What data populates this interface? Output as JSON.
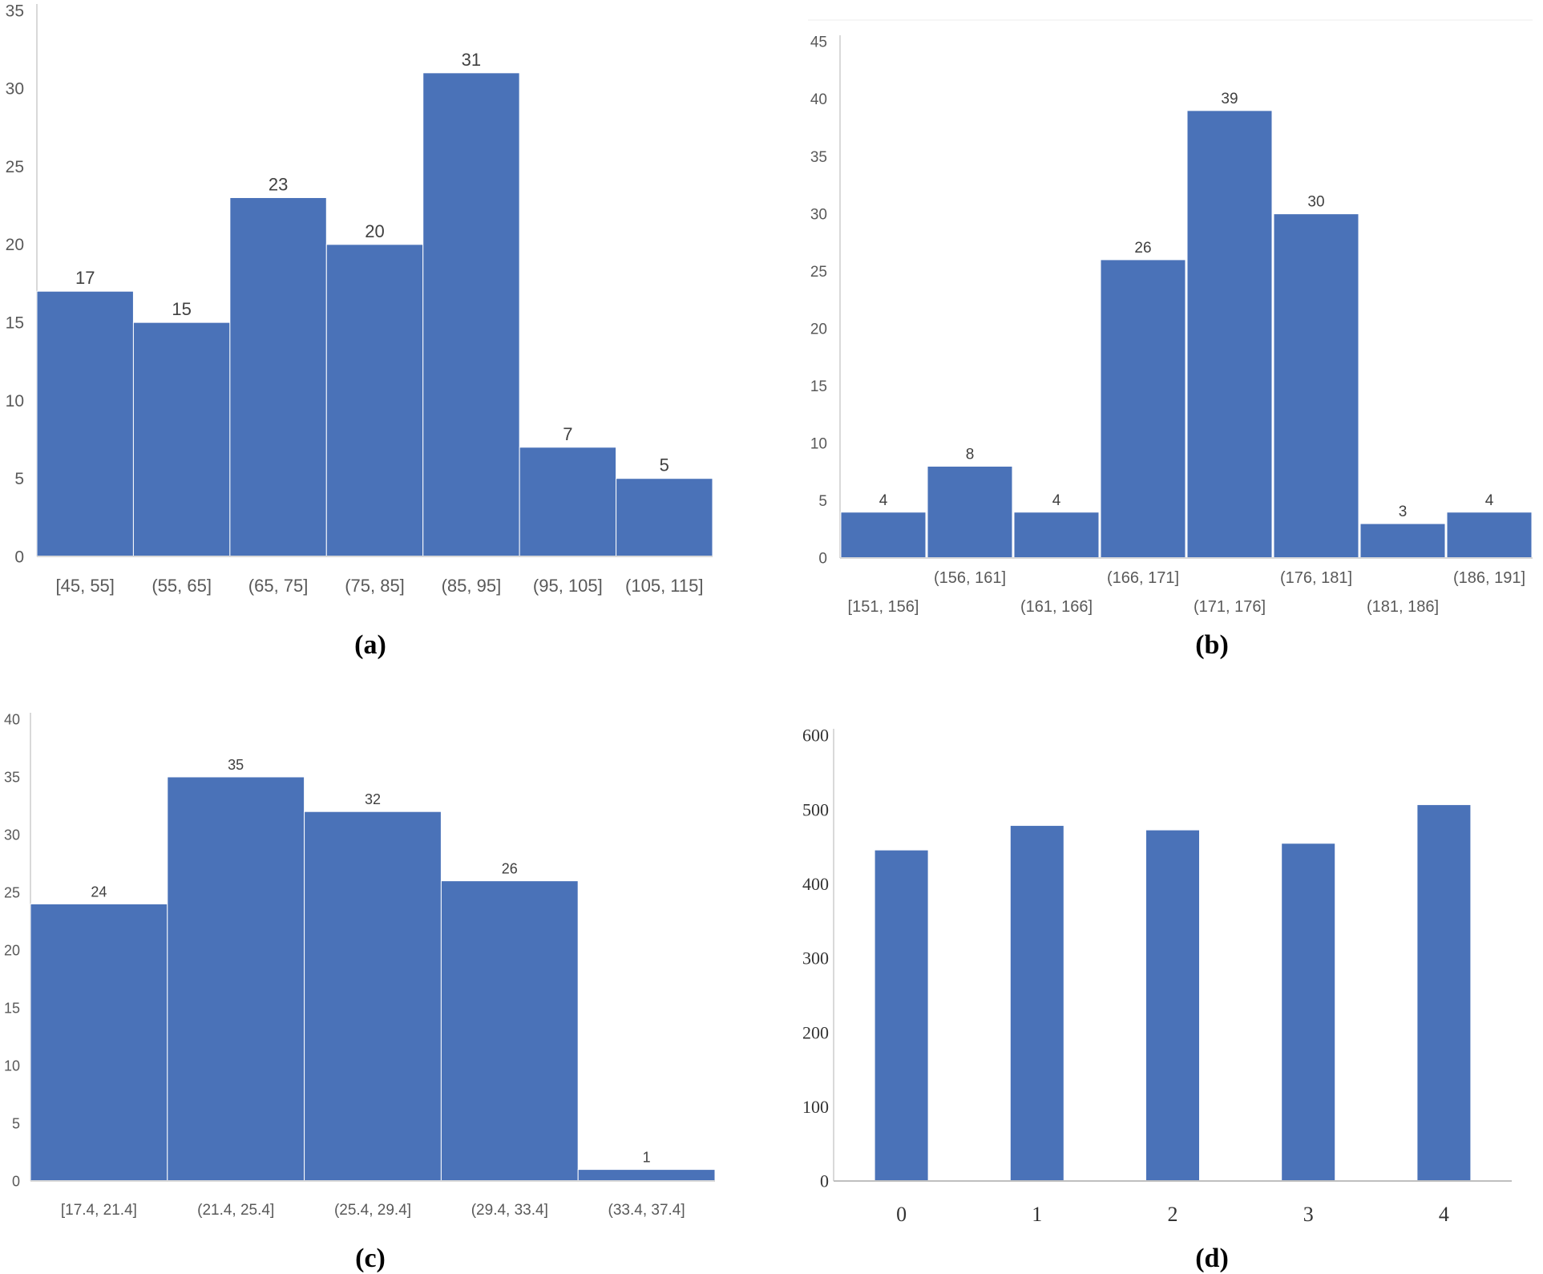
{
  "colors": {
    "bar": "#4a72b8",
    "axis": "#d9d9d9",
    "text": "#595959"
  },
  "chart_data": [
    {
      "panel": "(a)",
      "type": "bar",
      "title": "",
      "xlabel": "",
      "ylabel": "",
      "categories": [
        "[45, 55]",
        "(55, 65]",
        "(65, 75]",
        "(75, 85]",
        "(85, 95]",
        "(95, 105]",
        "(105, 115]"
      ],
      "values": [
        17,
        15,
        23,
        20,
        31,
        7,
        5
      ],
      "data_labels": [
        "17",
        "15",
        "23",
        "20",
        "31",
        "7",
        "5"
      ],
      "ylim": [
        0,
        35
      ],
      "yticks": [
        "0",
        "5",
        "10",
        "15",
        "20",
        "25",
        "30",
        "35"
      ],
      "histogram": true
    },
    {
      "panel": "(b)",
      "type": "bar",
      "title": "",
      "xlabel": "",
      "ylabel": "",
      "categories": [
        "[151, 156]",
        "(156, 161]",
        "(161, 166]",
        "(166, 171]",
        "(171, 176]",
        "(176, 181]",
        "(181, 186]",
        "(186, 191]"
      ],
      "values": [
        4,
        8,
        4,
        26,
        39,
        30,
        3,
        4
      ],
      "data_labels": [
        "4",
        "8",
        "4",
        "26",
        "39",
        "30",
        "3",
        "4"
      ],
      "ylim": [
        0,
        45
      ],
      "yticks": [
        "0",
        "5",
        "10",
        "15",
        "20",
        "25",
        "30",
        "35",
        "40",
        "45"
      ],
      "histogram": true
    },
    {
      "panel": "(c)",
      "type": "bar",
      "title": "",
      "xlabel": "",
      "ylabel": "",
      "categories": [
        "[17.4, 21.4]",
        "(21.4, 25.4]",
        "(25.4, 29.4]",
        "(29.4, 33.4]",
        "(33.4, 37.4]"
      ],
      "values": [
        24,
        35,
        32,
        26,
        1
      ],
      "data_labels": [
        "24",
        "35",
        "32",
        "26",
        "1"
      ],
      "ylim": [
        0,
        40
      ],
      "yticks": [
        "0",
        "5",
        "10",
        "15",
        "20",
        "25",
        "30",
        "35",
        "40"
      ],
      "histogram": true
    },
    {
      "panel": "(d)",
      "type": "bar",
      "title": "",
      "xlabel": "",
      "ylabel": "",
      "categories": [
        "0",
        "1",
        "2",
        "3",
        "4"
      ],
      "values": [
        445,
        478,
        472,
        454,
        506
      ],
      "data_labels": [],
      "ylim": [
        0,
        600
      ],
      "yticks": [
        "0",
        "100",
        "200",
        "300",
        "400",
        "500",
        "600"
      ],
      "histogram": false
    }
  ]
}
